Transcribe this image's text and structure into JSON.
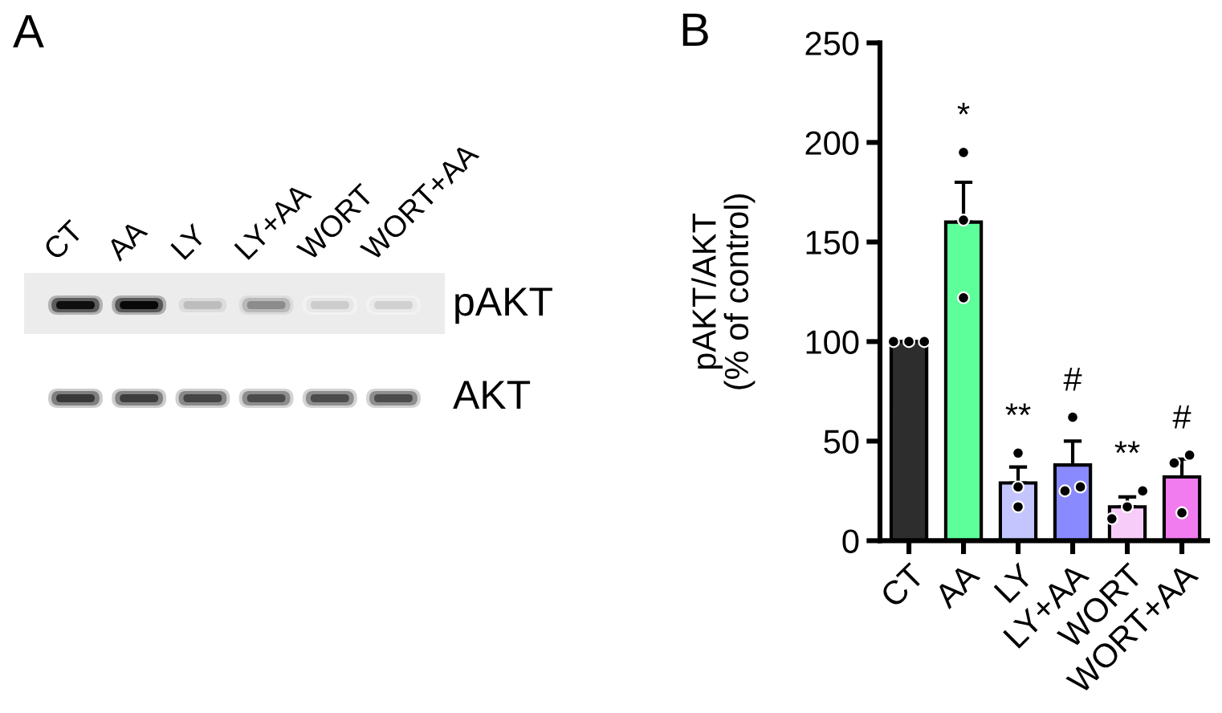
{
  "chart_data": [
    {
      "type": "other",
      "title": "A",
      "categories": [
        "CT",
        "AA",
        "LY",
        "LY+AA",
        "WORT",
        "WORT+AA"
      ],
      "annotations": [
        "pAKT",
        "AKT"
      ]
    },
    {
      "type": "bar",
      "title": "B",
      "ylabel": "pAKT/AKT\n(% of control)",
      "categories": [
        "CT",
        "AA",
        "LY",
        "LY+AA",
        "WORT",
        "WORT+AA"
      ],
      "ylim": [
        0,
        250
      ],
      "yticks": [
        0,
        50,
        100,
        150,
        200,
        250
      ],
      "series": [
        {
          "values": [
            100,
            160,
            29,
            38,
            17,
            32
          ],
          "colors": [
            "#2d2d2d",
            "#5cff9a",
            "#c4c4ff",
            "#8a8aff",
            "#f8ccf8",
            "#f07cf0"
          ],
          "errors": [
            null,
            [
              160,
              180
            ],
            [
              29,
              37
            ],
            [
              38,
              50
            ],
            [
              17,
              22
            ],
            [
              32,
              41
            ]
          ]
        },
        {
          "type": "scatter",
          "marker": "circle",
          "color": "#000000",
          "x": [
            "CT",
            "CT",
            "CT",
            "AA",
            "AA",
            "AA",
            "LY",
            "LY",
            "LY",
            "LY+AA",
            "LY+AA",
            "LY+AA",
            "WORT",
            "WORT",
            "WORT",
            "WORT+AA",
            "WORT+AA",
            "WORT+AA"
          ],
          "values": [
            100,
            100,
            100,
            195,
            161,
            122,
            44,
            27,
            17,
            62,
            25,
            27,
            25,
            11,
            17,
            43,
            39,
            14
          ]
        }
      ],
      "annotations": [
        "*",
        "**",
        "#",
        "**",
        "#"
      ]
    }
  ]
}
